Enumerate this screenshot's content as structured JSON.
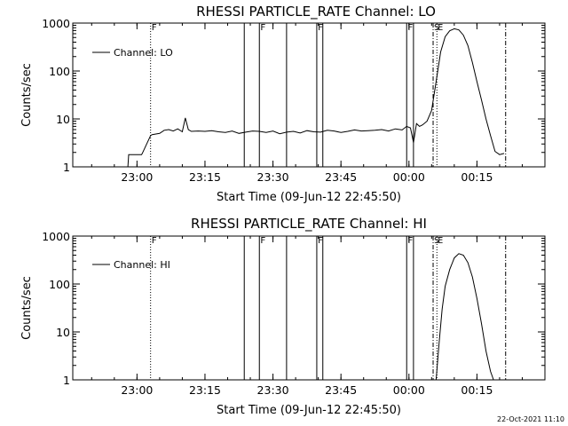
{
  "chart_data": [
    {
      "type": "line",
      "title": "RHESSI PARTICLE_RATE Channel: LO",
      "xlabel": "Start Time (09-Jun-12 22:45:50)",
      "ylabel": "Counts/sec",
      "y_scale": "log",
      "ylim": [
        1,
        1000
      ],
      "y_ticks": [
        {
          "value": 1,
          "label": "1"
        },
        {
          "value": 10,
          "label": "10"
        },
        {
          "value": 100,
          "label": "100"
        },
        {
          "value": 1000,
          "label": "1000"
        }
      ],
      "xlim": [
        "22:45:50",
        "00:30:00"
      ],
      "x_ticks": [
        "23:00",
        "23:15",
        "23:30",
        "23:45",
        "00:00",
        "00:15"
      ],
      "legend": {
        "label": "Channel: LO",
        "placement": "top-left"
      },
      "grid": false,
      "markers": [
        {
          "time": "23:03:00",
          "style": "dotted",
          "label": "F"
        },
        {
          "time": "23:23:40",
          "style": "solid",
          "label": ""
        },
        {
          "time": "23:27:00",
          "style": "solid",
          "label": "F"
        },
        {
          "time": "23:33:00",
          "style": "solid",
          "label": ""
        },
        {
          "time": "23:39:40",
          "style": "solid",
          "label": "F"
        },
        {
          "time": "23:41:00",
          "style": "solid",
          "label": ""
        },
        {
          "time": "23:59:30",
          "style": "solid",
          "label": "F"
        },
        {
          "time": "00:01:00",
          "style": "solid",
          "label": ""
        },
        {
          "time": "00:05:20",
          "style": "dashdot",
          "label": "S"
        },
        {
          "time": "00:06:10",
          "style": "dotted",
          "label": "E"
        },
        {
          "time": "00:21:20",
          "style": "dashdot",
          "label": ""
        }
      ],
      "series": [
        {
          "name": "Channel: LO",
          "x": [
            "22:58:00",
            "22:58:10",
            "23:01:00",
            "23:01:10",
            "23:03:00",
            "23:03:20",
            "23:05:00",
            "23:06:00",
            "23:07:00",
            "23:08:00",
            "23:09:00",
            "23:10:00",
            "23:10:40",
            "23:11:20",
            "23:12:00",
            "23:13:30",
            "23:15:00",
            "23:16:30",
            "23:18:00",
            "23:19:30",
            "23:21:00",
            "23:22:30",
            "23:24:00",
            "23:25:30",
            "23:27:00",
            "23:28:30",
            "23:30:00",
            "23:31:30",
            "23:33:00",
            "23:34:30",
            "23:36:00",
            "23:37:30",
            "23:39:00",
            "23:40:30",
            "23:42:00",
            "23:43:30",
            "23:45:00",
            "23:46:30",
            "23:48:00",
            "23:49:30",
            "23:51:00",
            "23:52:30",
            "23:54:00",
            "23:55:30",
            "23:57:00",
            "23:58:30",
            "23:59:30",
            "00:00:20",
            "00:01:00",
            "00:01:40",
            "00:02:20",
            "00:03:00",
            "00:04:00",
            "00:05:00",
            "00:06:00",
            "00:07:00",
            "00:08:00",
            "00:09:00",
            "00:10:00",
            "00:11:00",
            "00:12:00",
            "00:13:00",
            "00:14:00",
            "00:15:00",
            "00:16:00",
            "00:17:00",
            "00:18:00",
            "00:19:00",
            "00:20:00",
            "00:21:00"
          ],
          "values": [
            1.0,
            1.8,
            1.8,
            1.9,
            4.5,
            4.7,
            5.0,
            5.8,
            6.0,
            5.6,
            6.2,
            5.4,
            10.5,
            6.0,
            5.5,
            5.6,
            5.5,
            5.7,
            5.4,
            5.2,
            5.6,
            5.0,
            5.3,
            5.6,
            5.5,
            5.2,
            5.6,
            4.9,
            5.3,
            5.5,
            5.1,
            5.7,
            5.4,
            5.3,
            5.8,
            5.6,
            5.2,
            5.5,
            5.9,
            5.6,
            5.7,
            5.8,
            6.0,
            5.6,
            6.2,
            5.9,
            7.0,
            6.5,
            3.2,
            8.0,
            7.0,
            7.5,
            9.0,
            15,
            60,
            250,
            520,
            690,
            760,
            720,
            560,
            340,
            150,
            60,
            25,
            10,
            4.5,
            2.1,
            1.8,
            1.9
          ]
        }
      ]
    },
    {
      "type": "line",
      "title": "RHESSI PARTICLE_RATE Channel: HI",
      "xlabel": "Start Time (09-Jun-12 22:45:50)",
      "ylabel": "Counts/sec",
      "y_scale": "log",
      "ylim": [
        1,
        1000
      ],
      "y_ticks": [
        {
          "value": 1,
          "label": "1"
        },
        {
          "value": 10,
          "label": "10"
        },
        {
          "value": 100,
          "label": "100"
        },
        {
          "value": 1000,
          "label": "1000"
        }
      ],
      "xlim": [
        "22:45:50",
        "00:30:00"
      ],
      "x_ticks": [
        "23:00",
        "23:15",
        "23:30",
        "23:45",
        "00:00",
        "00:15"
      ],
      "legend": {
        "label": "Channel: HI",
        "placement": "top-left"
      },
      "grid": false,
      "markers": [
        {
          "time": "23:03:00",
          "style": "dotted",
          "label": "F"
        },
        {
          "time": "23:23:40",
          "style": "solid",
          "label": ""
        },
        {
          "time": "23:27:00",
          "style": "solid",
          "label": "F"
        },
        {
          "time": "23:33:00",
          "style": "solid",
          "label": ""
        },
        {
          "time": "23:39:40",
          "style": "solid",
          "label": "F"
        },
        {
          "time": "23:41:00",
          "style": "solid",
          "label": ""
        },
        {
          "time": "23:59:30",
          "style": "solid",
          "label": "F"
        },
        {
          "time": "00:01:00",
          "style": "solid",
          "label": ""
        },
        {
          "time": "00:05:20",
          "style": "dashdot",
          "label": "S"
        },
        {
          "time": "00:06:10",
          "style": "dotted",
          "label": "E"
        },
        {
          "time": "00:21:20",
          "style": "dashdot",
          "label": ""
        }
      ],
      "series": [
        {
          "name": "Channel: HI",
          "x": [
            "00:06:00",
            "00:06:40",
            "00:07:20",
            "00:08:00",
            "00:09:00",
            "00:10:00",
            "00:11:00",
            "00:12:00",
            "00:13:00",
            "00:14:00",
            "00:15:00",
            "00:16:00",
            "00:17:00",
            "00:18:00",
            "00:18:40"
          ],
          "values": [
            1.0,
            6.0,
            30,
            90,
            200,
            350,
            430,
            400,
            280,
            140,
            50,
            15,
            4.0,
            1.5,
            1.0
          ]
        }
      ]
    }
  ],
  "footer": {
    "timestamp": "22-Oct-2021 11:10"
  }
}
